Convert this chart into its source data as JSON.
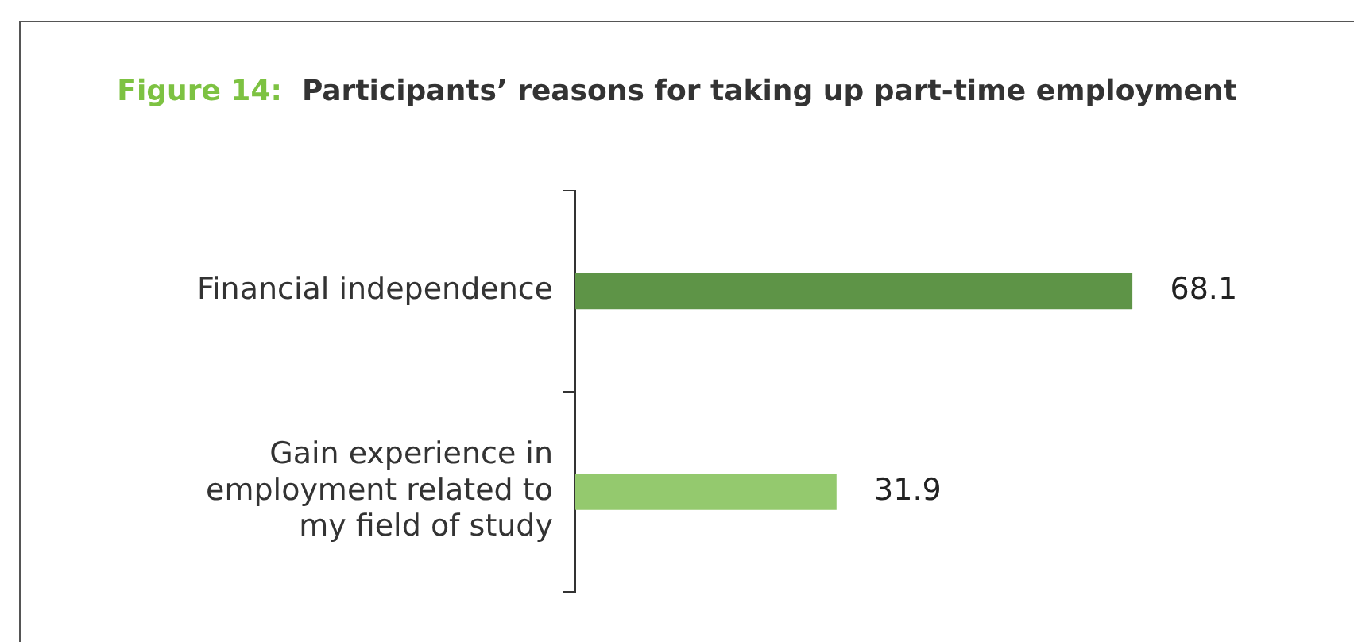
{
  "chart_data": {
    "type": "bar",
    "orientation": "horizontal",
    "title": "Figure 14:  Participants’ reasons for taking up part-time employment",
    "categories": [
      "Financial independence",
      "Gain experience in employment related to my field of study"
    ],
    "values": [
      68.1,
      31.9
    ],
    "colors": [
      "#5e9447",
      "#94c96e"
    ],
    "data_labels": true,
    "legend": false,
    "tick_labels": "y"
  }
}
